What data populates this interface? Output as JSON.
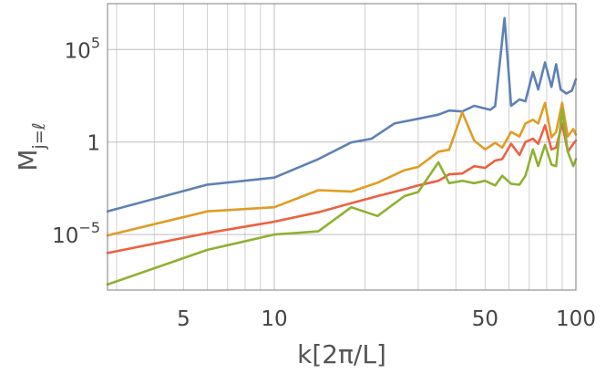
{
  "chart_data": {
    "type": "line",
    "xlabel": "k[2π/L]",
    "ylabel_main": "M",
    "ylabel_sub": "j=ℓ",
    "x_scale": "log",
    "y_scale": "log",
    "xlim": [
      2.8,
      100
    ],
    "ylim": [
      1e-08,
      30000000.0
    ],
    "x_ticks": [
      {
        "value": 5,
        "label": "5"
      },
      {
        "value": 10,
        "label": "10"
      },
      {
        "value": 50,
        "label": "50"
      },
      {
        "value": 100,
        "label": "100"
      }
    ],
    "y_ticks": [
      {
        "value": 1e-05,
        "base": "10",
        "exp": "−5"
      },
      {
        "value": 1,
        "base": "1",
        "exp": ""
      },
      {
        "value": 100000.0,
        "base": "10",
        "exp": "5"
      }
    ],
    "x_grid": [
      3,
      4,
      5,
      6,
      7,
      8,
      9,
      10,
      20,
      30,
      40,
      50,
      60,
      70,
      80,
      90,
      100
    ],
    "x_grid_major": [
      10,
      100
    ],
    "y_grid": [
      1e-05,
      1,
      100000.0
    ],
    "grid": true,
    "series": [
      {
        "color": "#5e81b5",
        "points": [
          [
            2.8,
            0.00018
          ],
          [
            6,
            0.005
          ],
          [
            10,
            0.012
          ],
          [
            14,
            0.12
          ],
          [
            18,
            0.95
          ],
          [
            21,
            1.5
          ],
          [
            25,
            10
          ],
          [
            30,
            18
          ],
          [
            35,
            30
          ],
          [
            38,
            50
          ],
          [
            42,
            45
          ],
          [
            46,
            90
          ],
          [
            52,
            55
          ],
          [
            54,
            88
          ],
          [
            58,
            5000000
          ],
          [
            61,
            92
          ],
          [
            65,
            200
          ],
          [
            68,
            160
          ],
          [
            72,
            6000
          ],
          [
            75,
            700
          ],
          [
            79,
            20000
          ],
          [
            83,
            950
          ],
          [
            86,
            16000
          ],
          [
            89,
            700
          ],
          [
            93,
            420
          ],
          [
            97,
            600
          ],
          [
            100,
            2500
          ]
        ]
      },
      {
        "color": "#e19c24",
        "points": [
          [
            2.8,
            9e-06
          ],
          [
            6,
            0.00018
          ],
          [
            10,
            0.0003
          ],
          [
            14,
            0.0025
          ],
          [
            18,
            0.0021
          ],
          [
            22,
            0.0063
          ],
          [
            27,
            0.03
          ],
          [
            30,
            0.045
          ],
          [
            35,
            0.3
          ],
          [
            38,
            0.38
          ],
          [
            42,
            40
          ],
          [
            46,
            1.2
          ],
          [
            50,
            0.4
          ],
          [
            54,
            0.9
          ],
          [
            57,
            0.5
          ],
          [
            61,
            3.5
          ],
          [
            65,
            2
          ],
          [
            68,
            10
          ],
          [
            72,
            16
          ],
          [
            75,
            10
          ],
          [
            79,
            130
          ],
          [
            83,
            1.8
          ],
          [
            86,
            3.5
          ],
          [
            90,
            130
          ],
          [
            94,
            2
          ],
          [
            98,
            5
          ],
          [
            100,
            2.5
          ]
        ]
      },
      {
        "color": "#ec6140",
        "points": [
          [
            2.8,
            1e-06
          ],
          [
            6,
            1.2e-05
          ],
          [
            10,
            5e-05
          ],
          [
            14,
            0.00016
          ],
          [
            18,
            0.0005
          ],
          [
            22,
            0.0012
          ],
          [
            27,
            0.0028
          ],
          [
            30,
            0.0045
          ],
          [
            35,
            0.008
          ],
          [
            38,
            0.018
          ],
          [
            42,
            0.02
          ],
          [
            46,
            0.05
          ],
          [
            50,
            0.04
          ],
          [
            54,
            0.1
          ],
          [
            57,
            0.12
          ],
          [
            61,
            0.8
          ],
          [
            65,
            0.2
          ],
          [
            68,
            1
          ],
          [
            72,
            1.5
          ],
          [
            75,
            0.8
          ],
          [
            79,
            8
          ],
          [
            83,
            0.4
          ],
          [
            86,
            0.5
          ],
          [
            90,
            10
          ],
          [
            94,
            0.3
          ],
          [
            98,
            0.8
          ],
          [
            100,
            1.2
          ]
        ]
      },
      {
        "color": "#8fb131",
        "points": [
          [
            2.8,
            2e-08
          ],
          [
            6,
            1.5e-06
          ],
          [
            10,
            1e-05
          ],
          [
            14,
            1.5e-05
          ],
          [
            18,
            0.0003
          ],
          [
            22,
            0.0001
          ],
          [
            27,
            0.0012
          ],
          [
            30,
            0.002
          ],
          [
            35,
            0.08
          ],
          [
            38,
            0.006
          ],
          [
            42,
            0.008
          ],
          [
            46,
            0.006
          ],
          [
            50,
            0.008
          ],
          [
            54,
            0.0045
          ],
          [
            57,
            0.015
          ],
          [
            61,
            0.0055
          ],
          [
            65,
            0.005
          ],
          [
            68,
            0.015
          ],
          [
            72,
            0.4
          ],
          [
            75,
            0.05
          ],
          [
            79,
            0.7
          ],
          [
            83,
            0.06
          ],
          [
            86,
            0.05
          ],
          [
            90,
            60
          ],
          [
            94,
            0.3
          ],
          [
            98,
            0.05
          ],
          [
            100,
            0.12
          ]
        ]
      }
    ]
  }
}
